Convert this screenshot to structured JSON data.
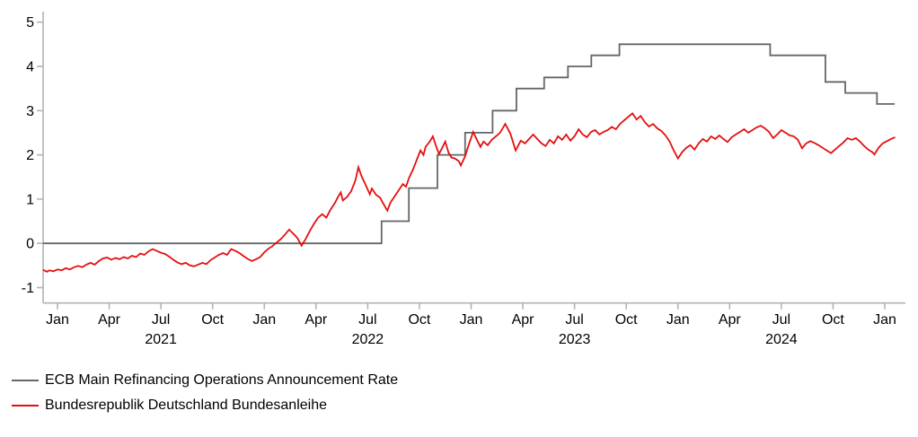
{
  "chart_data": {
    "type": "line",
    "title": "",
    "x_axis": {
      "unit": "date",
      "tick_months_from_jan2021": [
        0,
        3,
        6,
        9,
        12,
        15,
        18,
        21,
        24,
        27,
        30,
        33,
        36,
        39,
        42,
        45,
        48
      ],
      "tick_labels": [
        "Jan",
        "Apr",
        "Jul",
        "Oct",
        "Jan",
        "Apr",
        "Jul",
        "Oct",
        "Jan",
        "Apr",
        "Jul",
        "Oct",
        "Jan",
        "Apr",
        "Jul",
        "Oct",
        "Jan"
      ],
      "year_labels": [
        {
          "text": "2021",
          "month": 6
        },
        {
          "text": "2022",
          "month": 18
        },
        {
          "text": "2023",
          "month": 30
        },
        {
          "text": "2024",
          "month": 42
        }
      ],
      "range_decimal_years": [
        2020.93,
        2025.1
      ]
    },
    "y_axis": {
      "tick_labels": [
        "-1",
        "0",
        "1",
        "2",
        "3",
        "4",
        "5"
      ],
      "ticks": [
        -1,
        0,
        1,
        2,
        3,
        4,
        5
      ],
      "range": [
        -1.35,
        5.25
      ],
      "grid": false
    },
    "axis_color": "#b3b3b3",
    "tick_label_color": "#000000",
    "legend_position": "bottom-left",
    "series": [
      {
        "name": "ECB Main Refinancing Operations Announcement Rate",
        "color": "#666666",
        "style": "step",
        "points": [
          [
            2020.93,
            0.0
          ],
          [
            2022.567,
            0.5
          ],
          [
            2022.699,
            1.25
          ],
          [
            2022.837,
            2.0
          ],
          [
            2022.971,
            2.5
          ],
          [
            2023.104,
            3.0
          ],
          [
            2023.219,
            3.5
          ],
          [
            2023.353,
            3.75
          ],
          [
            2023.468,
            4.0
          ],
          [
            2023.581,
            4.25
          ],
          [
            2023.717,
            4.5
          ],
          [
            2024.446,
            4.25
          ],
          [
            2024.713,
            3.65
          ],
          [
            2024.809,
            3.4
          ],
          [
            2024.962,
            3.15
          ],
          [
            2025.048,
            3.15
          ]
        ]
      },
      {
        "name": "Bundesrepublik Deutschland Bundesanleihe",
        "color": "#e50f0f",
        "style": "line",
        "points": [
          [
            2020.93,
            -0.6
          ],
          [
            2020.95,
            -0.64
          ],
          [
            2020.96,
            -0.61
          ],
          [
            2020.98,
            -0.63
          ],
          [
            2021.0,
            -0.59
          ],
          [
            2021.02,
            -0.61
          ],
          [
            2021.04,
            -0.56
          ],
          [
            2021.06,
            -0.59
          ],
          [
            2021.08,
            -0.54
          ],
          [
            2021.1,
            -0.51
          ],
          [
            2021.12,
            -0.54
          ],
          [
            2021.14,
            -0.48
          ],
          [
            2021.16,
            -0.44
          ],
          [
            2021.18,
            -0.48
          ],
          [
            2021.2,
            -0.4
          ],
          [
            2021.22,
            -0.34
          ],
          [
            2021.24,
            -0.32
          ],
          [
            2021.26,
            -0.37
          ],
          [
            2021.28,
            -0.33
          ],
          [
            2021.3,
            -0.36
          ],
          [
            2021.32,
            -0.31
          ],
          [
            2021.34,
            -0.34
          ],
          [
            2021.36,
            -0.28
          ],
          [
            2021.38,
            -0.31
          ],
          [
            2021.4,
            -0.23
          ],
          [
            2021.42,
            -0.26
          ],
          [
            2021.44,
            -0.18
          ],
          [
            2021.46,
            -0.13
          ],
          [
            2021.48,
            -0.17
          ],
          [
            2021.5,
            -0.21
          ],
          [
            2021.52,
            -0.24
          ],
          [
            2021.54,
            -0.3
          ],
          [
            2021.56,
            -0.37
          ],
          [
            2021.58,
            -0.43
          ],
          [
            2021.6,
            -0.47
          ],
          [
            2021.62,
            -0.44
          ],
          [
            2021.64,
            -0.5
          ],
          [
            2021.66,
            -0.52
          ],
          [
            2021.68,
            -0.48
          ],
          [
            2021.7,
            -0.44
          ],
          [
            2021.72,
            -0.47
          ],
          [
            2021.74,
            -0.38
          ],
          [
            2021.76,
            -0.32
          ],
          [
            2021.78,
            -0.26
          ],
          [
            2021.8,
            -0.22
          ],
          [
            2021.82,
            -0.26
          ],
          [
            2021.84,
            -0.13
          ],
          [
            2021.86,
            -0.17
          ],
          [
            2021.88,
            -0.22
          ],
          [
            2021.9,
            -0.29
          ],
          [
            2021.92,
            -0.35
          ],
          [
            2021.94,
            -0.4
          ],
          [
            2021.96,
            -0.36
          ],
          [
            2021.98,
            -0.31
          ],
          [
            2022.0,
            -0.2
          ],
          [
            2022.02,
            -0.12
          ],
          [
            2022.04,
            -0.06
          ],
          [
            2022.06,
            0.02
          ],
          [
            2022.08,
            0.1
          ],
          [
            2022.1,
            0.2
          ],
          [
            2022.12,
            0.31
          ],
          [
            2022.14,
            0.22
          ],
          [
            2022.16,
            0.12
          ],
          [
            2022.18,
            -0.05
          ],
          [
            2022.2,
            0.1
          ],
          [
            2022.22,
            0.28
          ],
          [
            2022.24,
            0.44
          ],
          [
            2022.26,
            0.58
          ],
          [
            2022.28,
            0.66
          ],
          [
            2022.3,
            0.58
          ],
          [
            2022.32,
            0.76
          ],
          [
            2022.34,
            0.9
          ],
          [
            2022.36,
            1.08
          ],
          [
            2022.37,
            1.15
          ],
          [
            2022.38,
            0.97
          ],
          [
            2022.4,
            1.05
          ],
          [
            2022.42,
            1.18
          ],
          [
            2022.44,
            1.42
          ],
          [
            2022.455,
            1.72
          ],
          [
            2022.47,
            1.52
          ],
          [
            2022.49,
            1.32
          ],
          [
            2022.51,
            1.11
          ],
          [
            2022.52,
            1.24
          ],
          [
            2022.54,
            1.1
          ],
          [
            2022.56,
            1.03
          ],
          [
            2022.58,
            0.86
          ],
          [
            2022.595,
            0.74
          ],
          [
            2022.61,
            0.92
          ],
          [
            2022.63,
            1.06
          ],
          [
            2022.65,
            1.2
          ],
          [
            2022.67,
            1.34
          ],
          [
            2022.685,
            1.28
          ],
          [
            2022.7,
            1.48
          ],
          [
            2022.72,
            1.68
          ],
          [
            2022.74,
            1.92
          ],
          [
            2022.755,
            2.1
          ],
          [
            2022.77,
            2.0
          ],
          [
            2022.78,
            2.18
          ],
          [
            2022.8,
            2.3
          ],
          [
            2022.815,
            2.42
          ],
          [
            2022.83,
            2.2
          ],
          [
            2022.845,
            2.02
          ],
          [
            2022.86,
            2.16
          ],
          [
            2022.875,
            2.3
          ],
          [
            2022.89,
            2.06
          ],
          [
            2022.905,
            1.94
          ],
          [
            2022.92,
            1.92
          ],
          [
            2022.94,
            1.86
          ],
          [
            2022.95,
            1.76
          ],
          [
            2022.97,
            1.96
          ],
          [
            2022.99,
            2.25
          ],
          [
            2023.01,
            2.52
          ],
          [
            2023.03,
            2.32
          ],
          [
            2023.045,
            2.18
          ],
          [
            2023.06,
            2.3
          ],
          [
            2023.08,
            2.22
          ],
          [
            2023.1,
            2.34
          ],
          [
            2023.12,
            2.42
          ],
          [
            2023.14,
            2.5
          ],
          [
            2023.165,
            2.7
          ],
          [
            2023.19,
            2.48
          ],
          [
            2023.215,
            2.1
          ],
          [
            2023.24,
            2.32
          ],
          [
            2023.26,
            2.26
          ],
          [
            2023.28,
            2.36
          ],
          [
            2023.3,
            2.46
          ],
          [
            2023.32,
            2.36
          ],
          [
            2023.34,
            2.26
          ],
          [
            2023.36,
            2.2
          ],
          [
            2023.38,
            2.34
          ],
          [
            2023.4,
            2.26
          ],
          [
            2023.42,
            2.42
          ],
          [
            2023.44,
            2.34
          ],
          [
            2023.46,
            2.46
          ],
          [
            2023.48,
            2.32
          ],
          [
            2023.5,
            2.42
          ],
          [
            2023.52,
            2.58
          ],
          [
            2023.54,
            2.46
          ],
          [
            2023.56,
            2.4
          ],
          [
            2023.58,
            2.52
          ],
          [
            2023.6,
            2.56
          ],
          [
            2023.62,
            2.46
          ],
          [
            2023.64,
            2.52
          ],
          [
            2023.66,
            2.56
          ],
          [
            2023.68,
            2.63
          ],
          [
            2023.7,
            2.58
          ],
          [
            2023.72,
            2.7
          ],
          [
            2023.74,
            2.78
          ],
          [
            2023.76,
            2.86
          ],
          [
            2023.78,
            2.94
          ],
          [
            2023.8,
            2.8
          ],
          [
            2023.82,
            2.88
          ],
          [
            2023.84,
            2.74
          ],
          [
            2023.86,
            2.64
          ],
          [
            2023.88,
            2.7
          ],
          [
            2023.9,
            2.6
          ],
          [
            2023.92,
            2.54
          ],
          [
            2023.94,
            2.44
          ],
          [
            2023.96,
            2.3
          ],
          [
            2023.98,
            2.1
          ],
          [
            2024.0,
            1.92
          ],
          [
            2024.02,
            2.06
          ],
          [
            2024.04,
            2.16
          ],
          [
            2024.06,
            2.22
          ],
          [
            2024.08,
            2.12
          ],
          [
            2024.1,
            2.26
          ],
          [
            2024.12,
            2.36
          ],
          [
            2024.14,
            2.3
          ],
          [
            2024.16,
            2.42
          ],
          [
            2024.18,
            2.36
          ],
          [
            2024.2,
            2.44
          ],
          [
            2024.22,
            2.36
          ],
          [
            2024.24,
            2.29
          ],
          [
            2024.26,
            2.4
          ],
          [
            2024.28,
            2.46
          ],
          [
            2024.3,
            2.52
          ],
          [
            2024.32,
            2.58
          ],
          [
            2024.34,
            2.5
          ],
          [
            2024.36,
            2.56
          ],
          [
            2024.38,
            2.62
          ],
          [
            2024.4,
            2.66
          ],
          [
            2024.42,
            2.6
          ],
          [
            2024.44,
            2.52
          ],
          [
            2024.46,
            2.38
          ],
          [
            2024.48,
            2.46
          ],
          [
            2024.5,
            2.56
          ],
          [
            2024.52,
            2.5
          ],
          [
            2024.54,
            2.44
          ],
          [
            2024.56,
            2.42
          ],
          [
            2024.58,
            2.34
          ],
          [
            2024.6,
            2.15
          ],
          [
            2024.62,
            2.26
          ],
          [
            2024.64,
            2.31
          ],
          [
            2024.66,
            2.27
          ],
          [
            2024.68,
            2.22
          ],
          [
            2024.7,
            2.16
          ],
          [
            2024.72,
            2.1
          ],
          [
            2024.74,
            2.04
          ],
          [
            2024.76,
            2.12
          ],
          [
            2024.78,
            2.2
          ],
          [
            2024.8,
            2.28
          ],
          [
            2024.82,
            2.38
          ],
          [
            2024.84,
            2.34
          ],
          [
            2024.86,
            2.38
          ],
          [
            2024.88,
            2.3
          ],
          [
            2024.9,
            2.2
          ],
          [
            2024.92,
            2.12
          ],
          [
            2024.94,
            2.06
          ],
          [
            2024.95,
            2.01
          ],
          [
            2024.97,
            2.16
          ],
          [
            2024.99,
            2.26
          ],
          [
            2025.01,
            2.31
          ],
          [
            2025.03,
            2.36
          ],
          [
            2025.05,
            2.4
          ]
        ]
      }
    ]
  }
}
